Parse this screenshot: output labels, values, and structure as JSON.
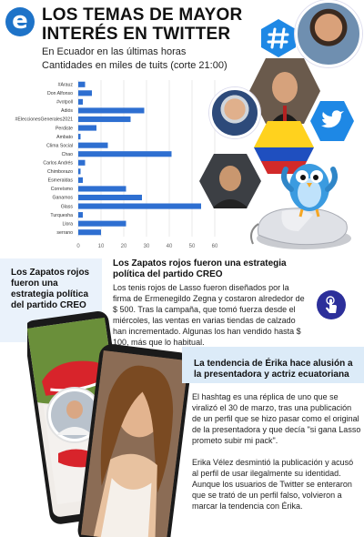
{
  "header": {
    "logo_letter": "e",
    "title": "LOS TEMAS DE MAYOR INTERÉS EN TWITTER",
    "subtitle_line1": "En Ecuador en las últimas horas",
    "subtitle_line2": "Cantidades en miles de tuits (corte 21:00)"
  },
  "chart_data": {
    "type": "bar",
    "orientation": "horizontal",
    "categories": [
      "#Arauz",
      "Don Alfonso",
      "#votpoll",
      "Adiós",
      "#EleccionesGenerales2021",
      "Perdiste",
      "Ambato",
      "Clima Social",
      "Chao",
      "Carlos Andrés",
      "Chimborazo",
      "Esmeraldas",
      "Correísmo",
      "Ganamos",
      "Glass",
      "Turquesha",
      "Llora",
      "serrano"
    ],
    "values": [
      3,
      6,
      2,
      29,
      23,
      8,
      1,
      13,
      41,
      3,
      1,
      2,
      21,
      28,
      54,
      2,
      21,
      10
    ],
    "xlim": [
      0,
      60
    ],
    "xticks": [
      0,
      10,
      20,
      30,
      40,
      50,
      60
    ],
    "bar_color": "#2e6fd1",
    "grid": true,
    "title": "",
    "xlabel": "",
    "ylabel": ""
  },
  "collage": {
    "icons": [
      "hashtag-icon",
      "twitter-bird-icon"
    ],
    "accent": "#1e88e5"
  },
  "story1": {
    "side_title": "Los Zapatos rojos fueron una estrategia política del partido CREO",
    "title": "Los Zapatos rojos fueron una estrategia política del partido CREO",
    "body": "Los tenis rojos de Lasso fueron diseñados por la firma de Ermenegildo Zegna y costaron alrededor de $ 500. Tras la campaña, que tomó fuerza desde el miércoles, las ventas en varias tiendas de calzado han incrementado. Algunas los han vendido hasta $ 100, más que lo habitual."
  },
  "story2": {
    "title": "La tendencia de Érika hace alusión a la presentadora y actriz ecuatoriana",
    "paragraph1": "El hashtag es una réplica de uno que se viralizó el 30 de marzo, tras una publicación de un perfil que se hizo pasar como el original de la presentadora y que decía \"si gana Lasso prometo subir mi pack\".",
    "paragraph2": "Erika Vélez desmintió la publicación y acusó al perfil de usar ilegalmente su identidad. Aunque los usuarios de Twitter se enteraron que se trató de un perfil falso, volvieron a marcar la tendencia con Érika."
  }
}
